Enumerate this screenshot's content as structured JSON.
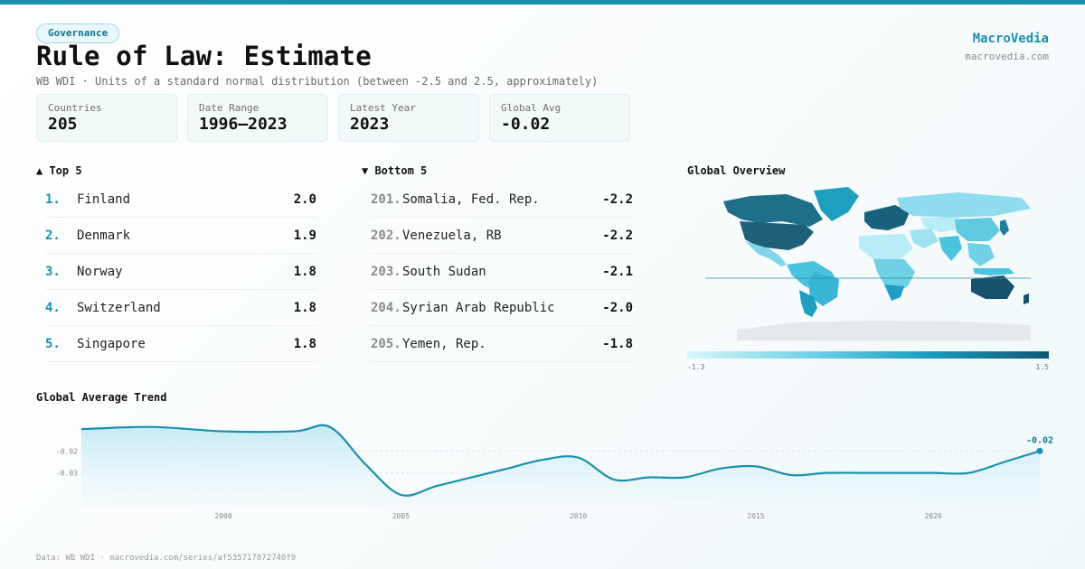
{
  "header": {
    "tag": "Governance",
    "title": "Rule of Law: Estimate",
    "subtitle": "WB WDI · Units of a standard normal distribution (between -2.5 and 2.5, approximately)",
    "brand": "MacroVedia",
    "brand_url": "macrovedia.com"
  },
  "stats": [
    {
      "label": "Countries",
      "value": "205"
    },
    {
      "label": "Date Range",
      "value": "1996–2023"
    },
    {
      "label": "Latest Year",
      "value": "2023"
    },
    {
      "label": "Global Avg",
      "value": "-0.02"
    }
  ],
  "top": {
    "title": "▲ Top 5",
    "items": [
      {
        "rank": "1.",
        "name": "Finland",
        "value": "2.0"
      },
      {
        "rank": "2.",
        "name": "Denmark",
        "value": "1.9"
      },
      {
        "rank": "3.",
        "name": "Norway",
        "value": "1.8"
      },
      {
        "rank": "4.",
        "name": "Switzerland",
        "value": "1.8"
      },
      {
        "rank": "5.",
        "name": "Singapore",
        "value": "1.8"
      }
    ]
  },
  "bottom": {
    "title": "▼ Bottom 5",
    "items": [
      {
        "rank": "201.",
        "name": "Somalia, Fed. Rep.",
        "value": "-2.2"
      },
      {
        "rank": "202.",
        "name": "Venezuela, RB",
        "value": "-2.2"
      },
      {
        "rank": "203.",
        "name": "South Sudan",
        "value": "-2.1"
      },
      {
        "rank": "204.",
        "name": "Syrian Arab Republic",
        "value": "-2.0"
      },
      {
        "rank": "205.",
        "name": "Yemen, Rep.",
        "value": "-1.8"
      }
    ]
  },
  "map": {
    "title": "Global Overview",
    "legend_min": "-1.3",
    "legend_max": "1.5",
    "colors": {
      "low": "#d9f6fb",
      "mid": "#1f9fc0",
      "high": "#0f5873",
      "nodata": "#e6e9ec"
    }
  },
  "trend": {
    "title": "Global Average Trend",
    "end_label": "-0.02"
  },
  "chart_data": {
    "type": "area",
    "title": "Global Average Trend",
    "x": [
      1996,
      1998,
      2000,
      2002,
      2003,
      2004,
      2005,
      2006,
      2007,
      2008,
      2009,
      2010,
      2011,
      2012,
      2013,
      2014,
      2015,
      2016,
      2017,
      2018,
      2019,
      2020,
      2021,
      2022,
      2023
    ],
    "y": [
      -0.01,
      -0.009,
      -0.011,
      -0.011,
      -0.009,
      -0.026,
      -0.04,
      -0.036,
      -0.032,
      -0.028,
      -0.024,
      -0.023,
      -0.033,
      -0.032,
      -0.032,
      -0.028,
      -0.027,
      -0.031,
      -0.03,
      -0.03,
      -0.03,
      -0.03,
      -0.03,
      -0.025,
      -0.02
    ],
    "y_ticks": [
      "-0.02",
      "-0.03"
    ],
    "y_tick_values": [
      -0.02,
      -0.03
    ],
    "x_ticks": [
      "2000",
      "2005",
      "2010",
      "2015",
      "2020"
    ],
    "x_tick_values": [
      2000,
      2005,
      2010,
      2015,
      2020
    ],
    "ylim": [
      -0.045,
      -0.005
    ],
    "xlim": [
      1996,
      2023
    ],
    "end_label": "-0.02",
    "line_color": "#1a8fae",
    "fill_color": "#bfe8f3"
  },
  "footer": "Data: WB WDI · macrovedia.com/series/af535717872740f9"
}
